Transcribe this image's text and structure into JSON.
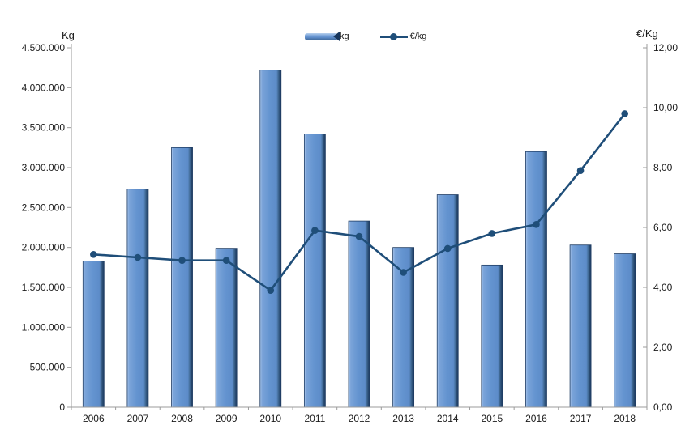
{
  "colors": {
    "bar_fill": "#6190ce",
    "bar_highlight": "#a7c4ea",
    "bar_edge": "#1f3c63",
    "line": "#1f4e79",
    "axis": "#9b9b9b",
    "text": "#1a1a1a"
  },
  "chart_data": {
    "type": "bar",
    "subtype": "bar-line-combo",
    "title": "",
    "categories": [
      "2006",
      "2007",
      "2008",
      "2009",
      "2010",
      "2011",
      "2012",
      "2013",
      "2014",
      "2015",
      "2016",
      "2017",
      "2018"
    ],
    "series": [
      {
        "name": "kg",
        "type": "bar",
        "axis": "left",
        "values": [
          1830000,
          2730000,
          3250000,
          1990000,
          4220000,
          3420000,
          2330000,
          2000000,
          2660000,
          1780000,
          3200000,
          2030000,
          1920000
        ]
      },
      {
        "name": "€/kg",
        "type": "line",
        "axis": "right",
        "values": [
          5.1,
          5.0,
          4.9,
          4.9,
          3.9,
          5.9,
          5.7,
          4.5,
          5.3,
          5.8,
          6.1,
          7.9,
          9.8
        ]
      }
    ],
    "left_axis": {
      "title": "Kg",
      "min": 0,
      "max": 4500000,
      "step": 500000,
      "tick_labels": [
        "4.500.000",
        "4.000.000",
        "3.500.000",
        "3.000.000",
        "2.500.000",
        "2.000.000",
        "1.500.000",
        "1.000.000",
        "500.000",
        "0"
      ]
    },
    "right_axis": {
      "title": "€/Kg",
      "min": 0,
      "max": 12,
      "step": 2,
      "tick_labels": [
        "12,00",
        "10,00",
        "8,00",
        "6,00",
        "4,00",
        "2,00",
        "0,00"
      ]
    },
    "legend": {
      "position": "top",
      "items": [
        {
          "label": "kg"
        },
        {
          "label": "€/kg"
        }
      ]
    },
    "grid": false
  }
}
